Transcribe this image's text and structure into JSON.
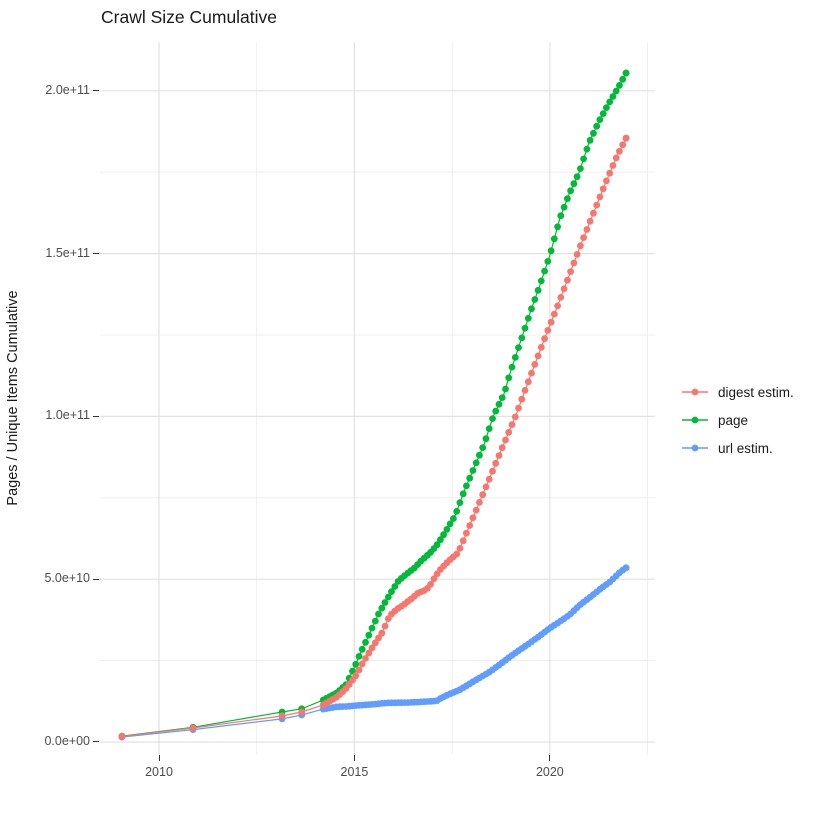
{
  "title": "Crawl Size Cumulative",
  "axes": {
    "x": {
      "range_years": [
        2008.49,
        2022.69
      ],
      "major_ticks": [
        {
          "value": 2010,
          "label": "2010"
        },
        {
          "value": 2015,
          "label": "2015"
        },
        {
          "value": 2020,
          "label": "2020"
        }
      ],
      "minor_ticks": [
        2012.5,
        2017.5,
        2022.5
      ]
    },
    "y": {
      "label": "Pages / Unique Items Cumulative",
      "range_e9": [
        -4,
        215
      ],
      "major_ticks": [
        {
          "value_e9": 0,
          "label": "0.0e+00"
        },
        {
          "value_e9": 50,
          "label": "5.0e+10"
        },
        {
          "value_e9": 100,
          "label": "1.0e+11"
        },
        {
          "value_e9": 150,
          "label": "1.5e+11"
        },
        {
          "value_e9": 200,
          "label": "2.0e+11"
        }
      ],
      "minor_ticks_e9": [
        25,
        75,
        125,
        175
      ]
    }
  },
  "colors": {
    "digest": "#F8766D",
    "page": "#00BA38",
    "url": "#619CFF",
    "grid_major": "#E2E2E2",
    "grid_minor": "#EDEDED"
  },
  "legend": {
    "items": [
      {
        "series": "digest",
        "label": "digest estim."
      },
      {
        "series": "page",
        "label": "page"
      },
      {
        "series": "url",
        "label": "url estim."
      }
    ]
  },
  "chart_data": {
    "type": "line",
    "x_unit": "year (decimal)",
    "y_unit": "cumulative count, billions (1e9)",
    "series": [
      {
        "id": "digest",
        "label": "digest estim.",
        "draw_order": 3,
        "sparse_points": [
          [
            2009.05,
            1.7
          ],
          [
            2010.87,
            4.3
          ],
          [
            2013.15,
            8.0
          ],
          [
            2013.65,
            9.2
          ]
        ],
        "anchor_points": [
          [
            2014.2,
            11.4
          ],
          [
            2014.55,
            13.8
          ],
          [
            2014.8,
            16.6
          ],
          [
            2014.9,
            18.2
          ],
          [
            2015.05,
            20.6
          ],
          [
            2015.2,
            24.0
          ],
          [
            2015.37,
            27.4
          ],
          [
            2015.54,
            30.6
          ],
          [
            2015.71,
            33.6
          ],
          [
            2015.87,
            38.0
          ],
          [
            2015.97,
            39.6
          ],
          [
            2016.1,
            40.9
          ],
          [
            2016.22,
            41.8
          ],
          [
            2016.35,
            43.0
          ],
          [
            2016.48,
            44.2
          ],
          [
            2016.63,
            45.8
          ],
          [
            2016.83,
            46.7
          ],
          [
            2016.94,
            48.2
          ],
          [
            2017.06,
            50.7
          ],
          [
            2017.2,
            53.0
          ],
          [
            2017.4,
            55.5
          ],
          [
            2017.65,
            58.1
          ],
          [
            2017.9,
            65.1
          ],
          [
            2018.16,
            72.5
          ],
          [
            2018.42,
            79.9
          ],
          [
            2018.67,
            87.2
          ],
          [
            2018.93,
            94.6
          ],
          [
            2019.12,
            100.0
          ],
          [
            2019.34,
            107.2
          ],
          [
            2019.6,
            115.5
          ],
          [
            2019.9,
            125.0
          ],
          [
            2020.2,
            134.0
          ],
          [
            2020.5,
            143.5
          ],
          [
            2020.8,
            153.0
          ],
          [
            2021.1,
            162.0
          ],
          [
            2021.4,
            171.0
          ],
          [
            2021.7,
            179.5
          ],
          [
            2021.95,
            185.5
          ]
        ],
        "point_interval_years": 0.0833
      },
      {
        "id": "page",
        "label": "page",
        "draw_order": 1,
        "sparse_points": [
          [
            2009.05,
            1.8
          ],
          [
            2010.87,
            4.5
          ],
          [
            2013.15,
            9.2
          ],
          [
            2013.65,
            10.2
          ]
        ],
        "anchor_points": [
          [
            2014.2,
            12.9
          ],
          [
            2014.55,
            15.1
          ],
          [
            2014.8,
            17.8
          ],
          [
            2014.9,
            20.5
          ],
          [
            2015.05,
            24.3
          ],
          [
            2015.12,
            26.4
          ],
          [
            2015.29,
            30.8
          ],
          [
            2015.45,
            35.0
          ],
          [
            2015.62,
            39.4
          ],
          [
            2015.79,
            43.0
          ],
          [
            2015.95,
            46.2
          ],
          [
            2016.12,
            49.4
          ],
          [
            2016.3,
            51.3
          ],
          [
            2016.53,
            53.4
          ],
          [
            2016.73,
            55.9
          ],
          [
            2016.93,
            58.0
          ],
          [
            2017.1,
            60.3
          ],
          [
            2017.3,
            64.0
          ],
          [
            2017.57,
            69.4
          ],
          [
            2017.8,
            76.8
          ],
          [
            2018.06,
            84.2
          ],
          [
            2018.32,
            91.5
          ],
          [
            2018.55,
            100.0
          ],
          [
            2018.83,
            107.0
          ],
          [
            2019.0,
            114.0
          ],
          [
            2019.25,
            123.0
          ],
          [
            2019.5,
            132.0
          ],
          [
            2019.75,
            140.5
          ],
          [
            2020.0,
            149.5
          ],
          [
            2020.26,
            161.0
          ],
          [
            2020.5,
            168.5
          ],
          [
            2020.75,
            175.0
          ],
          [
            2021.0,
            184.0
          ],
          [
            2021.25,
            190.5
          ],
          [
            2021.5,
            196.0
          ],
          [
            2021.75,
            201.0
          ],
          [
            2021.95,
            205.5
          ]
        ],
        "point_interval_years": 0.0833
      },
      {
        "id": "url",
        "label": "url estim.",
        "draw_order": 2,
        "sparse_points": [
          [
            2009.05,
            1.5
          ],
          [
            2010.87,
            3.8
          ],
          [
            2013.15,
            7.1
          ],
          [
            2013.65,
            8.3
          ]
        ],
        "anchor_points": [
          [
            2014.2,
            10.1
          ],
          [
            2014.55,
            10.8
          ],
          [
            2014.8,
            10.9
          ],
          [
            2015.05,
            11.2
          ],
          [
            2015.5,
            11.6
          ],
          [
            2015.84,
            12.0
          ],
          [
            2016.35,
            12.1
          ],
          [
            2016.7,
            12.3
          ],
          [
            2016.97,
            12.5
          ],
          [
            2017.1,
            12.6
          ],
          [
            2017.22,
            13.5
          ],
          [
            2017.43,
            14.7
          ],
          [
            2017.69,
            16.0
          ],
          [
            2017.94,
            17.8
          ],
          [
            2018.2,
            19.7
          ],
          [
            2018.46,
            21.5
          ],
          [
            2018.71,
            23.7
          ],
          [
            2018.97,
            26.1
          ],
          [
            2019.23,
            28.3
          ],
          [
            2019.49,
            30.4
          ],
          [
            2019.74,
            32.6
          ],
          [
            2020.0,
            35.0
          ],
          [
            2020.26,
            37.0
          ],
          [
            2020.5,
            39.0
          ],
          [
            2020.77,
            42.1
          ],
          [
            2021.03,
            44.5
          ],
          [
            2021.29,
            47.0
          ],
          [
            2021.54,
            49.2
          ],
          [
            2021.8,
            52.2
          ],
          [
            2021.95,
            53.5
          ]
        ],
        "point_interval_years": 0.0833
      }
    ]
  }
}
